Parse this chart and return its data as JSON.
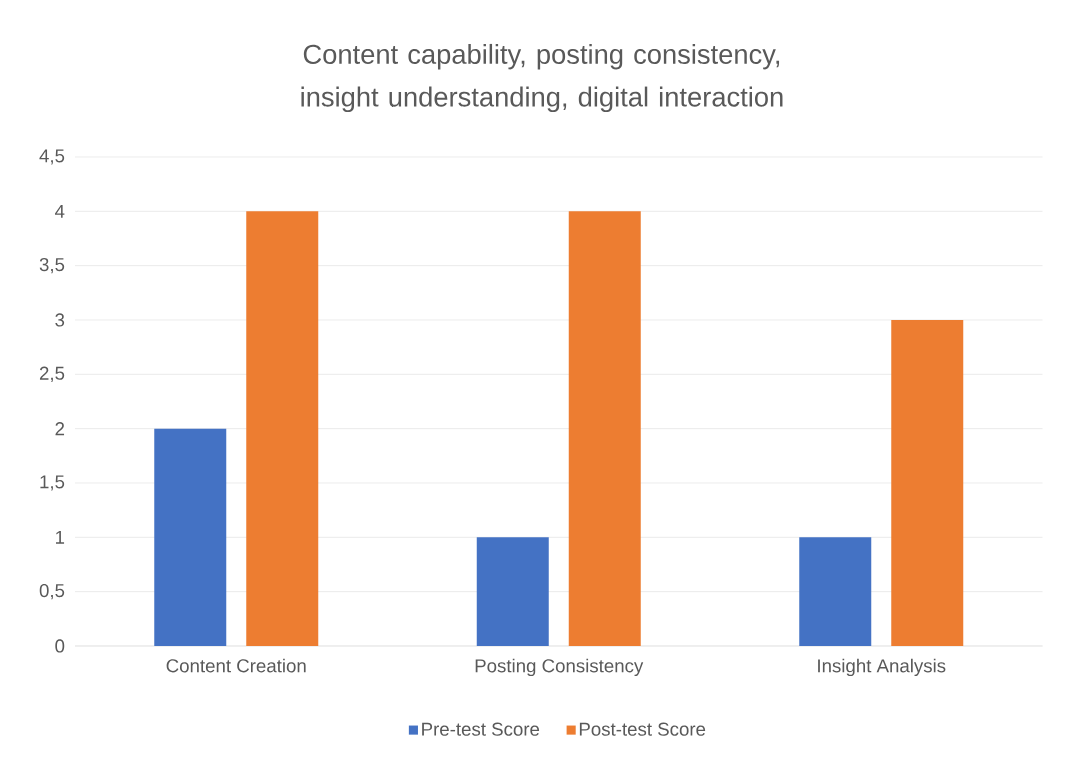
{
  "chart_data": {
    "type": "bar",
    "title": "Content capability, posting consistency, insight understanding, digital interaction",
    "categories": [
      "Content Creation",
      "Posting Consistency",
      "Insight Analysis"
    ],
    "series": [
      {
        "name": "Pre-test Score",
        "color": "#4472c4",
        "values": [
          2,
          1,
          1
        ]
      },
      {
        "name": "Post-test Score",
        "color": "#ed7d31",
        "values": [
          4,
          4,
          3
        ]
      }
    ],
    "ylim": [
      0,
      4.5
    ],
    "yticks": [
      0,
      {
        "value": 0.5,
        "label": "0,5"
      },
      1,
      {
        "value": 1.5,
        "label": "1,5"
      },
      2,
      {
        "value": 2.5,
        "label": "2,5"
      },
      3,
      {
        "value": 3.5,
        "label": "3,5"
      },
      4,
      {
        "value": 4.5,
        "label": "4,5"
      }
    ],
    "grid": "y",
    "legend": "bottom"
  }
}
